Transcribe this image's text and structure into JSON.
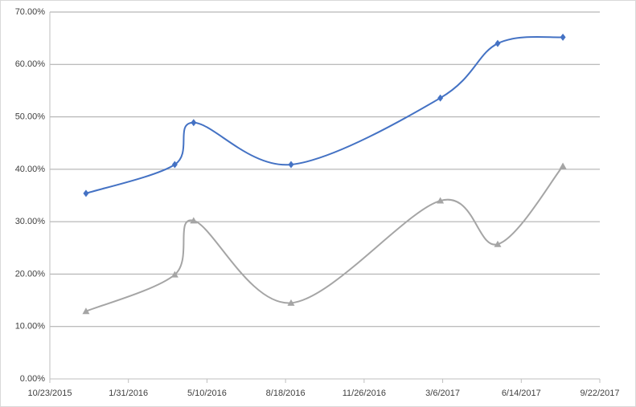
{
  "chart_data": {
    "type": "scatter-smooth",
    "x": [
      "12/8/2015",
      "3/30/2016",
      "4/23/2016",
      "8/25/2016",
      "3/3/2017",
      "5/15/2017",
      "8/6/2017"
    ],
    "series": [
      {
        "color": "#4472c4",
        "marker": "diamond",
        "values": [
          35.4,
          40.9,
          48.9,
          40.9,
          53.6,
          64.0,
          65.2
        ]
      },
      {
        "color": "#a5a5a5",
        "marker": "triangle",
        "values": [
          12.9,
          19.9,
          30.2,
          14.5,
          34.0,
          25.7,
          40.6
        ]
      }
    ],
    "xlim": [
      "10/23/2015",
      "9/22/2017"
    ],
    "xticks": [
      "10/23/2015",
      "1/31/2016",
      "5/10/2016",
      "8/18/2016",
      "11/26/2016",
      "3/6/2017",
      "6/14/2017",
      "9/22/2017"
    ],
    "ylim": [
      0,
      70
    ],
    "yticks": [
      {
        "value": 0,
        "label": "0.00%"
      },
      {
        "value": 10,
        "label": "10.00%"
      },
      {
        "value": 20,
        "label": "20.00%"
      },
      {
        "value": 30,
        "label": "30.00%"
      },
      {
        "value": 40,
        "label": "40.00%"
      },
      {
        "value": 50,
        "label": "50.00%"
      },
      {
        "value": 60,
        "label": "60.00%"
      },
      {
        "value": 70,
        "label": "70.00%"
      }
    ],
    "grid": true
  }
}
